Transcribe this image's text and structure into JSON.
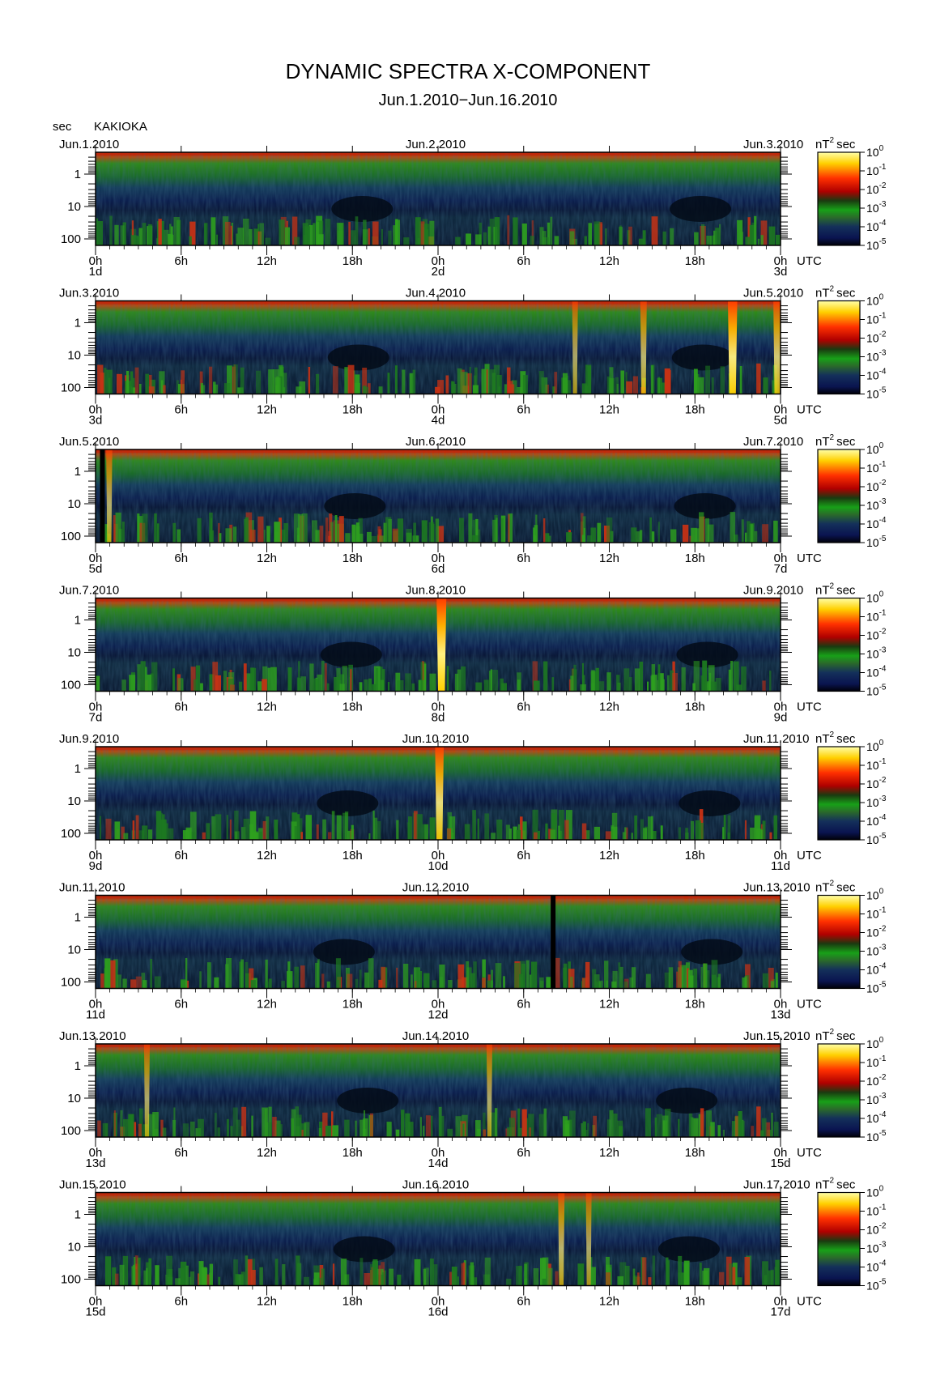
{
  "title": "DYNAMIC SPECTRA X-COMPONENT",
  "subtitle": "Jun.1.2010−Jun.16.2010",
  "station": "KAKIOKA",
  "y_axis_unit": "sec",
  "colorbar_unit_base": "nT",
  "colorbar_unit_exp": "2",
  "colorbar_unit_tail": "sec",
  "utc_label": "UTC",
  "colorbar": {
    "levels": [
      "10",
      "10",
      "10",
      "10",
      "10",
      "10"
    ],
    "exponents": [
      "0",
      "-1",
      "-2",
      "-3",
      "-4",
      "-5"
    ],
    "colors": [
      "#ffffaa",
      "#ffd000",
      "#ff2000",
      "#cc0000",
      "#178017",
      "#0a2a6a",
      "#000010"
    ]
  },
  "chart_data": [
    {
      "type": "heatmap",
      "date_left": "Jun.1.2010",
      "date_mid": "Jun.2.2010",
      "date_right": "Jun.3.2010",
      "x_ticks": [
        "0h",
        "6h",
        "12h",
        "18h",
        "0h",
        "6h",
        "12h",
        "18h",
        "0h"
      ],
      "day_labels": [
        "1d",
        "2d",
        "3d"
      ],
      "y_ticks": [
        "1",
        "10",
        "100"
      ],
      "y_scale": "log",
      "y_unit": "sec",
      "z_range": [
        "10^-5",
        "10^0"
      ],
      "features": []
    },
    {
      "type": "heatmap",
      "date_left": "Jun.3.2010",
      "date_mid": "Jun.4.2010",
      "date_right": "Jun.5.2010",
      "x_ticks": [
        "0h",
        "6h",
        "12h",
        "18h",
        "0h",
        "6h",
        "12h",
        "18h",
        "0h"
      ],
      "day_labels": [
        "3d",
        "4d",
        "5d"
      ],
      "y_ticks": [
        "1",
        "10",
        "100"
      ],
      "y_scale": "log",
      "y_unit": "sec",
      "z_range": [
        "10^-5",
        "10^0"
      ],
      "features": [
        {
          "kind": "streak",
          "x": 0.7,
          "intensity": 0.45
        },
        {
          "kind": "streak",
          "x": 0.8,
          "intensity": 0.55
        },
        {
          "kind": "streak",
          "x": 0.93,
          "intensity": 0.95
        },
        {
          "kind": "streak",
          "x": 0.995,
          "intensity": 0.7
        }
      ]
    },
    {
      "type": "heatmap",
      "date_left": "Jun.5.2010",
      "date_mid": "Jun.6.2010",
      "date_right": "Jun.7.2010",
      "x_ticks": [
        "0h",
        "6h",
        "12h",
        "18h",
        "0h",
        "6h",
        "12h",
        "18h",
        "0h"
      ],
      "day_labels": [
        "5d",
        "6d",
        "7d"
      ],
      "y_ticks": [
        "1",
        "10",
        "100"
      ],
      "y_scale": "log",
      "y_unit": "sec",
      "z_range": [
        "10^-5",
        "10^0"
      ],
      "features": [
        {
          "kind": "gap",
          "x": 0.01
        },
        {
          "kind": "streak",
          "x": 0.02,
          "intensity": 0.5
        }
      ]
    },
    {
      "type": "heatmap",
      "date_left": "Jun.7.2010",
      "date_mid": "Jun.8.2010",
      "date_right": "Jun.9.2010",
      "x_ticks": [
        "0h",
        "6h",
        "12h",
        "18h",
        "0h",
        "6h",
        "12h",
        "18h",
        "0h"
      ],
      "day_labels": [
        "7d",
        "8d",
        "9d"
      ],
      "y_ticks": [
        "1",
        "10",
        "100"
      ],
      "y_scale": "log",
      "y_unit": "sec",
      "z_range": [
        "10^-5",
        "10^0"
      ],
      "features": [
        {
          "kind": "streak",
          "x": 0.505,
          "intensity": 1.0
        }
      ]
    },
    {
      "type": "heatmap",
      "date_left": "Jun.9.2010",
      "date_mid": "Jun.10.2010",
      "date_right": "Jun.11.2010",
      "x_ticks": [
        "0h",
        "6h",
        "12h",
        "18h",
        "0h",
        "6h",
        "12h",
        "18h",
        "0h"
      ],
      "day_labels": [
        "9d",
        "10d",
        "11d"
      ],
      "y_ticks": [
        "1",
        "10",
        "100"
      ],
      "y_scale": "log",
      "y_unit": "sec",
      "z_range": [
        "10^-5",
        "10^0"
      ],
      "features": [
        {
          "kind": "streak",
          "x": 0.502,
          "intensity": 0.85
        }
      ]
    },
    {
      "type": "heatmap",
      "date_left": "Jun.11.2010",
      "date_mid": "Jun.12.2010",
      "date_right": "Jun.13.2010",
      "x_ticks": [
        "0h",
        "6h",
        "12h",
        "18h",
        "0h",
        "6h",
        "12h",
        "18h",
        "0h"
      ],
      "day_labels": [
        "11d",
        "12d",
        "13d"
      ],
      "y_ticks": [
        "1",
        "10",
        "100"
      ],
      "y_scale": "log",
      "y_unit": "sec",
      "z_range": [
        "10^-5",
        "10^0"
      ],
      "features": [
        {
          "kind": "gap",
          "x": 0.668
        }
      ]
    },
    {
      "type": "heatmap",
      "date_left": "Jun.13.2010",
      "date_mid": "Jun.14.2010",
      "date_right": "Jun.15.2010",
      "x_ticks": [
        "0h",
        "6h",
        "12h",
        "18h",
        "0h",
        "6h",
        "12h",
        "18h",
        "0h"
      ],
      "day_labels": [
        "13d",
        "14d",
        "15d"
      ],
      "y_ticks": [
        "1",
        "10",
        "100"
      ],
      "y_scale": "log",
      "y_unit": "sec",
      "z_range": [
        "10^-5",
        "10^0"
      ],
      "features": [
        {
          "kind": "streak",
          "x": 0.075,
          "intensity": 0.45
        },
        {
          "kind": "streak",
          "x": 0.575,
          "intensity": 0.45
        }
      ]
    },
    {
      "type": "heatmap",
      "date_left": "Jun.15.2010",
      "date_mid": "Jun.16.2010",
      "date_right": "Jun.17.2010",
      "x_ticks": [
        "0h",
        "6h",
        "12h",
        "18h",
        "0h",
        "6h",
        "12h",
        "18h",
        "0h"
      ],
      "day_labels": [
        "15d",
        "16d",
        "17d"
      ],
      "y_ticks": [
        "1",
        "10",
        "100"
      ],
      "y_scale": "log",
      "y_unit": "sec",
      "z_range": [
        "10^-5",
        "10^0"
      ],
      "features": [
        {
          "kind": "streak",
          "x": 0.68,
          "intensity": 0.55
        },
        {
          "kind": "streak",
          "x": 0.72,
          "intensity": 0.45
        }
      ]
    }
  ]
}
